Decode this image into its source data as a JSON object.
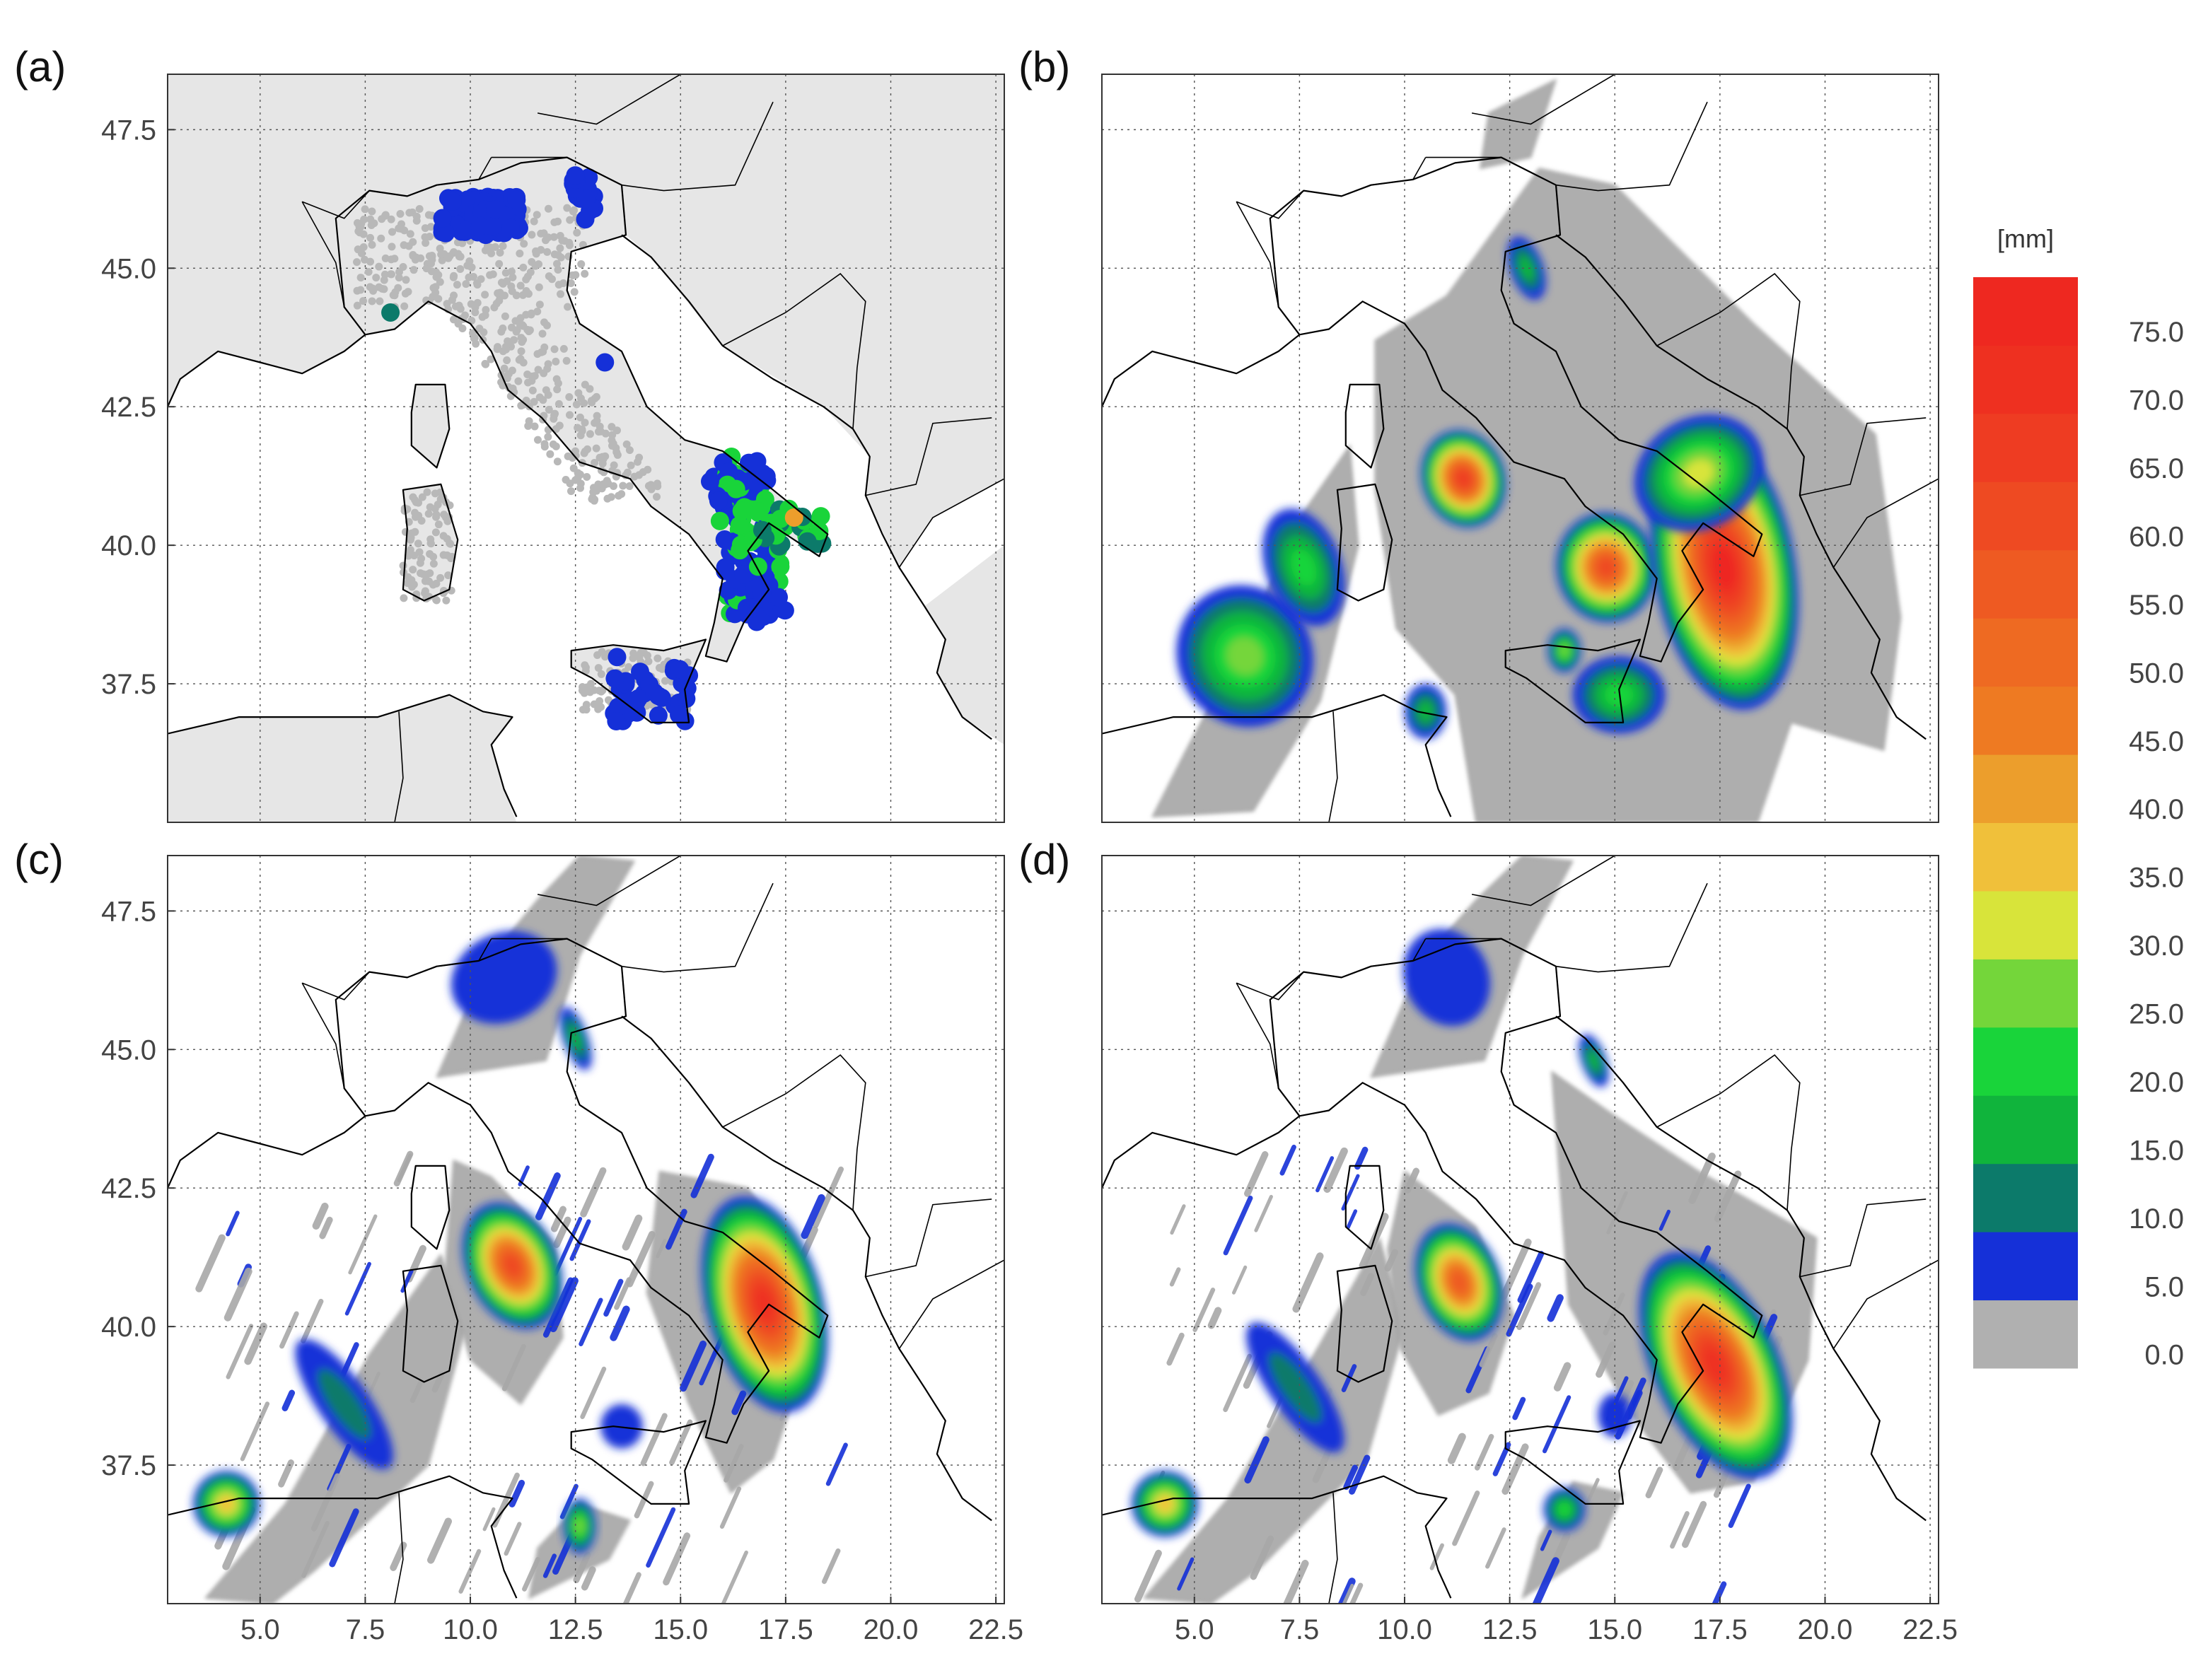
{
  "figure": {
    "panels": [
      {
        "id": "a",
        "letter": "(a)",
        "kind": "stations"
      },
      {
        "id": "b",
        "letter": "(b)",
        "kind": "field"
      },
      {
        "id": "c",
        "letter": "(c)",
        "kind": "field"
      },
      {
        "id": "d",
        "letter": "(d)",
        "kind": "field"
      }
    ],
    "lat_ticks": [
      "47.5",
      "45.0",
      "42.5",
      "40.0",
      "37.5"
    ],
    "lon_ticks": [
      "5.0",
      "7.5",
      "10.0",
      "12.5",
      "15.0",
      "17.5",
      "20.0",
      "22.5"
    ],
    "colorbar": {
      "unit": "[mm]",
      "labels": [
        "75.0",
        "70.0",
        "65.0",
        "60.0",
        "55.0",
        "50.0",
        "45.0",
        "40.0",
        "35.0",
        "30.0",
        "25.0",
        "20.0",
        "15.0",
        "10.0",
        "5.0",
        "0.0"
      ],
      "bins": [
        {
          "from": 0,
          "to": 5,
          "color": "#b0b0b0"
        },
        {
          "from": 5,
          "to": 10,
          "color": "#1530d8"
        },
        {
          "from": 10,
          "to": 15,
          "color": "#0c7a6a"
        },
        {
          "from": 15,
          "to": 20,
          "color": "#10b43c"
        },
        {
          "from": 20,
          "to": 25,
          "color": "#19d43a"
        },
        {
          "from": 25,
          "to": 30,
          "color": "#74d63a"
        },
        {
          "from": 30,
          "to": 35,
          "color": "#d8e43a"
        },
        {
          "from": 35,
          "to": 40,
          "color": "#f0c03a"
        },
        {
          "from": 40,
          "to": 45,
          "color": "#ec9e2c"
        },
        {
          "from": 45,
          "to": 50,
          "color": "#ee7a22"
        },
        {
          "from": 50,
          "to": 55,
          "color": "#ee6a22"
        },
        {
          "from": 55,
          "to": 60,
          "color": "#ee5a22"
        },
        {
          "from": 60,
          "to": 65,
          "color": "#ee4a22"
        },
        {
          "from": 65,
          "to": 70,
          "color": "#ee3c22"
        },
        {
          "from": 70,
          "to": 75,
          "color": "#ee3020"
        },
        {
          "from": 75,
          "to": 80,
          "color": "#ee2820"
        }
      ]
    },
    "colors": {
      "land_panel_a": "#e6e6e6",
      "station_none": "#b8b8b8",
      "coast": "#000000",
      "grid": "#555555"
    }
  }
}
